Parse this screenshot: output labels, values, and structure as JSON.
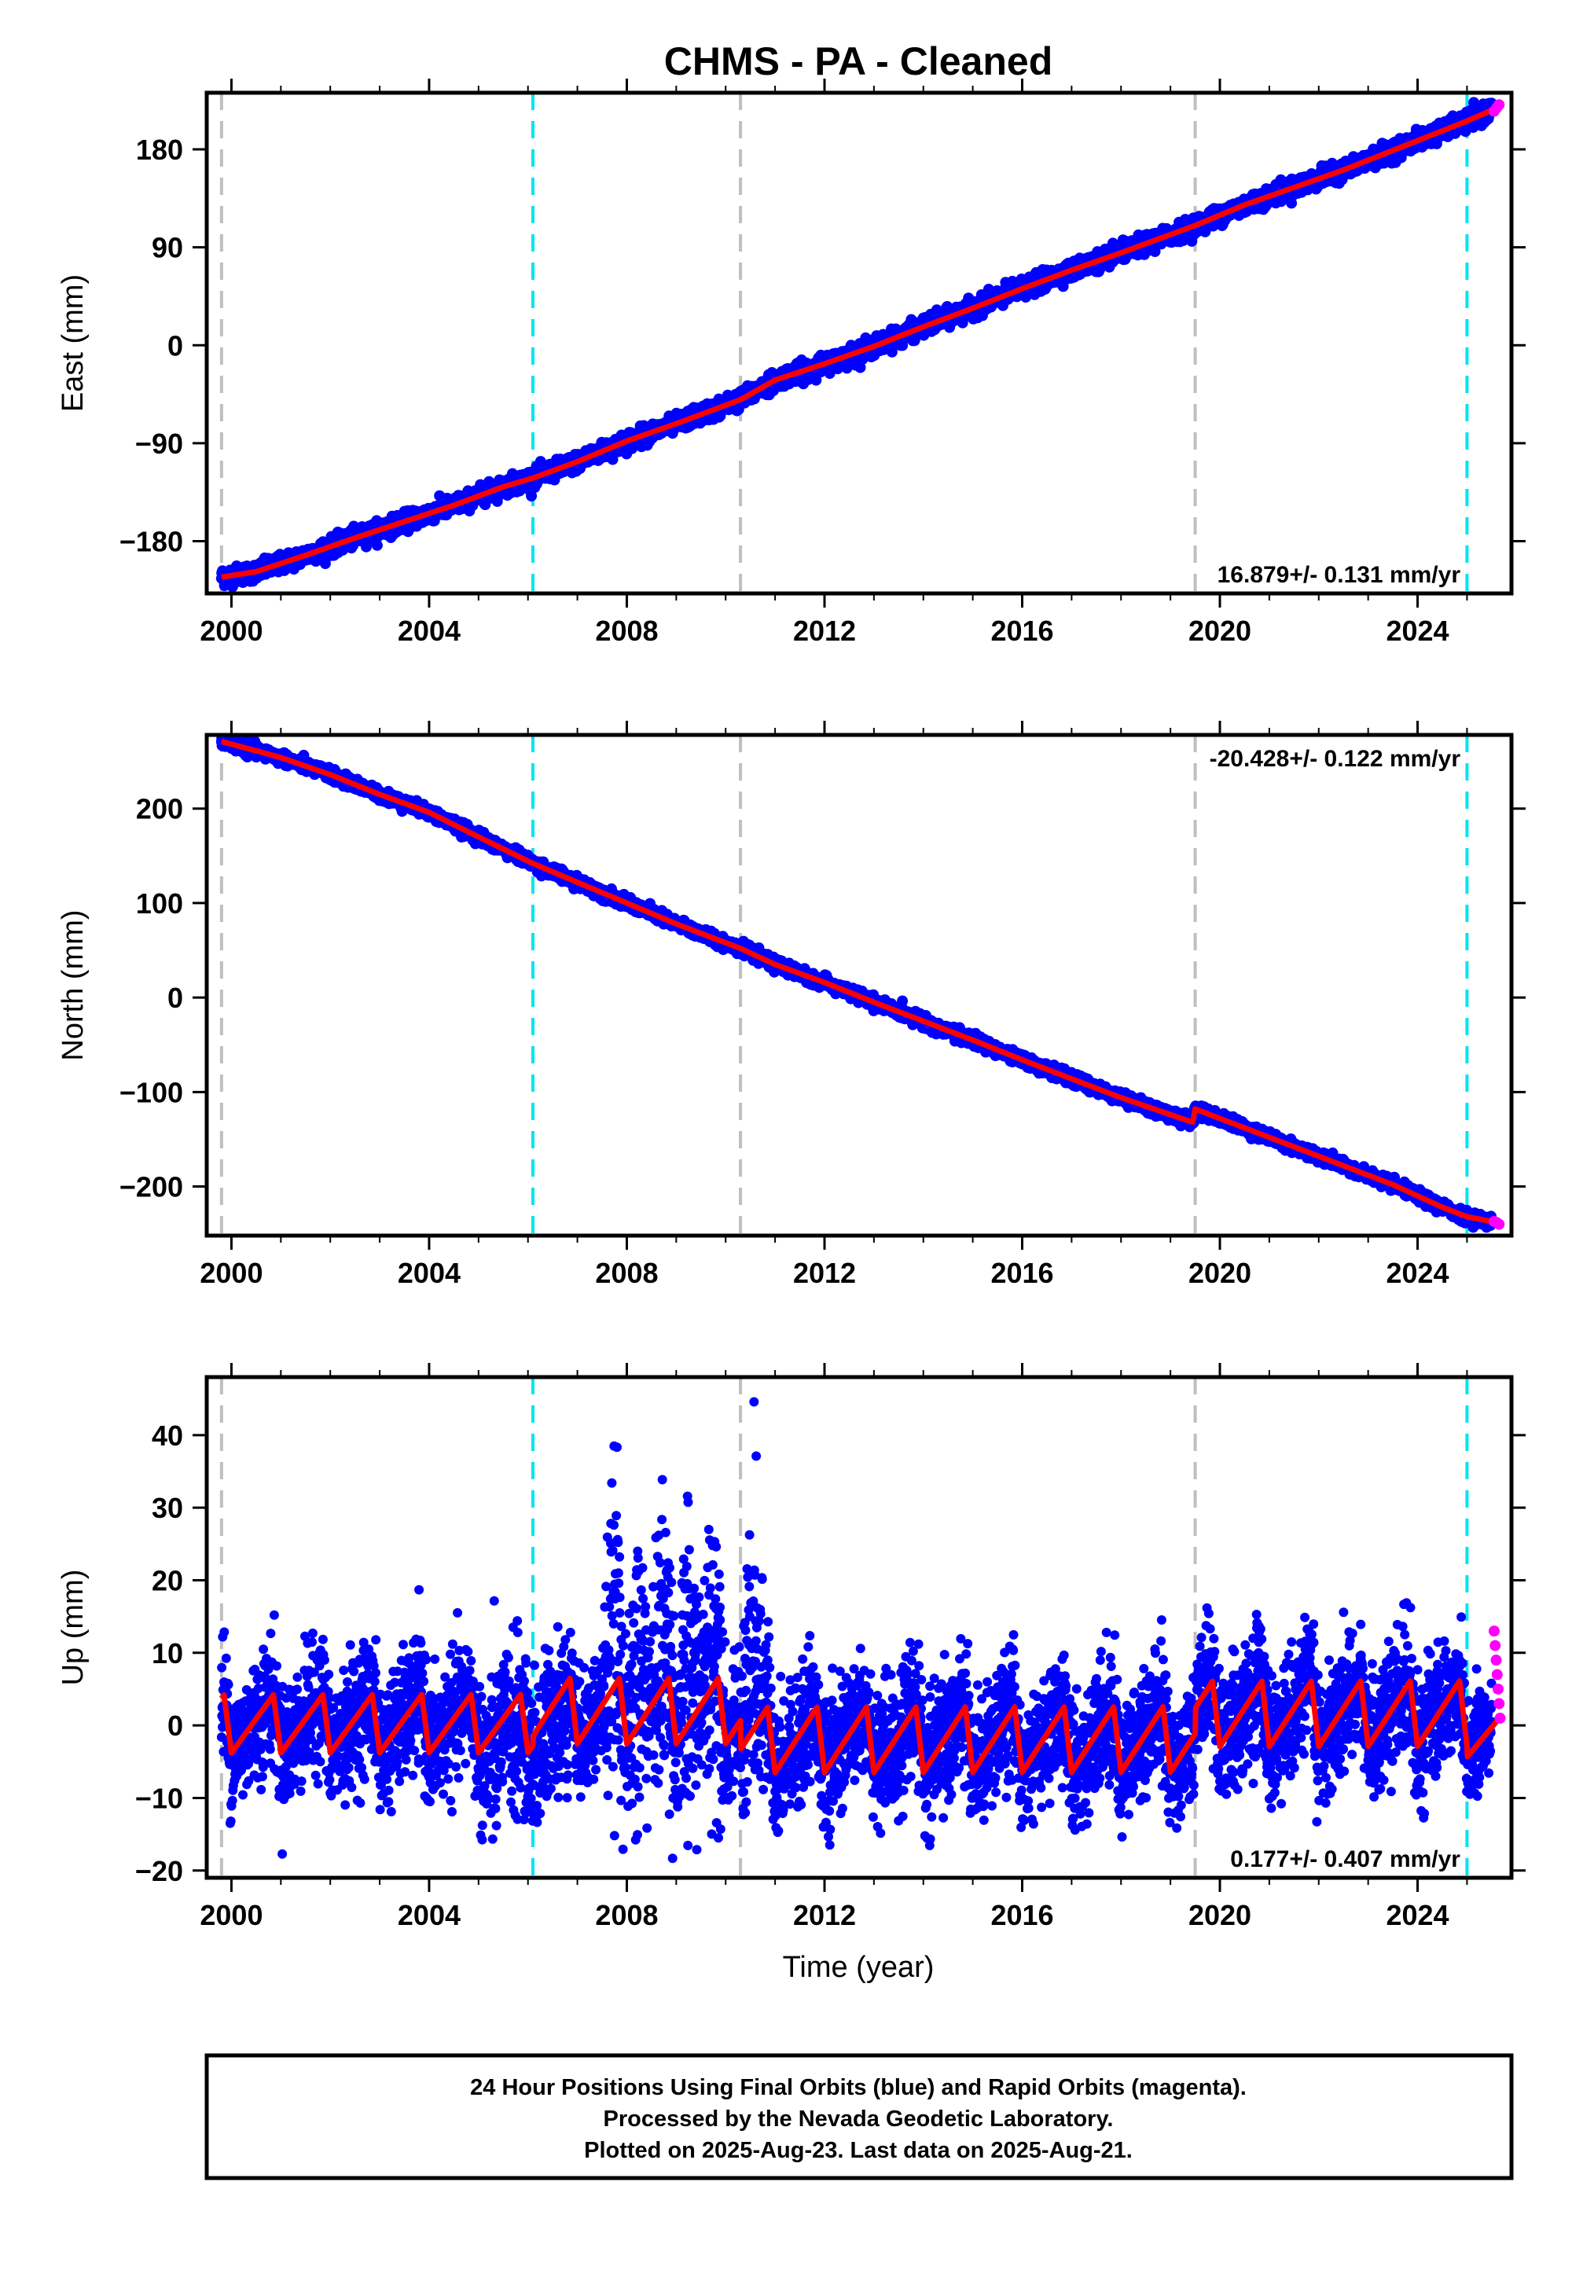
{
  "figure": {
    "title": "CHMS  - PA - Cleaned",
    "footer_lines": [
      "24 Hour Positions Using Final Orbits (blue) and Rapid Orbits (magenta).",
      "Processed by the Nevada Geodetic Laboratory.",
      "Plotted on 2025-Aug-23. Last data on 2025-Aug-21."
    ]
  },
  "colors": {
    "final_orbits": "#0000ff",
    "rapid_orbits": "#ff00ff",
    "model": "#ff0000",
    "antenna_change": "#00e5ee",
    "equipment_change": "#bfbfbf"
  },
  "chart_data": [
    {
      "type": "scatter",
      "ylabel": "East (mm)",
      "xlabel": "",
      "xlim": [
        1999.5,
        2025.9
      ],
      "ylim": [
        -228,
        232
      ],
      "x_ticks": [
        2000,
        2004,
        2008,
        2012,
        2016,
        2020,
        2024
      ],
      "y_ticks": [
        -180,
        -90,
        0,
        90,
        180
      ],
      "y_tick_labels": [
        "−180",
        "−90",
        "0",
        "90",
        "180"
      ],
      "rate_text": "16.879+/- 0.131 mm/yr",
      "velocity_mm_per_yr": 16.879,
      "cyan_lines": [
        2006.1,
        2025.0
      ],
      "gray_lines": [
        1999.8,
        2010.3,
        2019.5
      ],
      "model_points": [
        [
          1999.8,
          -213
        ],
        [
          2000.5,
          -208
        ],
        [
          2001.5,
          -193
        ],
        [
          2002.5,
          -177
        ],
        [
          2003.5,
          -162
        ],
        [
          2004.5,
          -147
        ],
        [
          2005.5,
          -130
        ],
        [
          2006.1,
          -122
        ],
        [
          2007.0,
          -107
        ],
        [
          2008.0,
          -88
        ],
        [
          2009.0,
          -72
        ],
        [
          2010.3,
          -50
        ],
        [
          2011.0,
          -32
        ],
        [
          2012.0,
          -17
        ],
        [
          2013.0,
          -1
        ],
        [
          2014.0,
          17
        ],
        [
          2015.0,
          34
        ],
        [
          2016.0,
          52
        ],
        [
          2017.0,
          69
        ],
        [
          2018.0,
          85
        ],
        [
          2019.5,
          110
        ],
        [
          2020.5,
          129
        ],
        [
          2021.5,
          145
        ],
        [
          2022.5,
          161
        ],
        [
          2023.5,
          179
        ],
        [
          2024.5,
          197
        ],
        [
          2025.0,
          206
        ],
        [
          2025.6,
          218
        ]
      ],
      "scatter_spread_mm": 4,
      "rapid_points": [
        [
          2025.55,
          215
        ],
        [
          2025.6,
          218
        ],
        [
          2025.65,
          221
        ]
      ]
    },
    {
      "type": "scatter",
      "ylabel": "North (mm)",
      "xlabel": "",
      "xlim": [
        1999.5,
        2025.9
      ],
      "ylim": [
        -252,
        278
      ],
      "x_ticks": [
        2000,
        2004,
        2008,
        2012,
        2016,
        2020,
        2024
      ],
      "y_ticks": [
        -200,
        -100,
        0,
        100,
        200
      ],
      "y_tick_labels": [
        "−200",
        "−100",
        "0",
        "100",
        "200"
      ],
      "rate_text": "-20.428+/- 0.122 mm/yr",
      "velocity_mm_per_yr": -20.428,
      "cyan_lines": [
        2006.1,
        2025.0
      ],
      "gray_lines": [
        1999.8,
        2010.3,
        2019.5
      ],
      "model_points": [
        [
          1999.8,
          271
        ],
        [
          2001.0,
          254
        ],
        [
          2002.0,
          236
        ],
        [
          2003.0,
          215
        ],
        [
          2004.0,
          196
        ],
        [
          2005.0,
          170
        ],
        [
          2006.1,
          142
        ],
        [
          2007.0,
          122
        ],
        [
          2008.0,
          100
        ],
        [
          2009.0,
          78
        ],
        [
          2010.3,
          52
        ],
        [
          2011.0,
          35
        ],
        [
          2012.0,
          16
        ],
        [
          2013.0,
          -5
        ],
        [
          2014.0,
          -25
        ],
        [
          2015.0,
          -45
        ],
        [
          2016.0,
          -66
        ],
        [
          2017.0,
          -86
        ],
        [
          2018.0,
          -106
        ],
        [
          2019.45,
          -132
        ],
        [
          2019.5,
          -118
        ],
        [
          2020.5,
          -138
        ],
        [
          2021.5,
          -158
        ],
        [
          2022.5,
          -178
        ],
        [
          2023.5,
          -198
        ],
        [
          2024.5,
          -222
        ],
        [
          2025.0,
          -232
        ],
        [
          2025.6,
          -238
        ]
      ],
      "scatter_spread_mm": 3,
      "rapid_points": [
        [
          2025.55,
          -237
        ],
        [
          2025.6,
          -238
        ],
        [
          2025.65,
          -240
        ]
      ]
    },
    {
      "type": "scatter",
      "ylabel": "Up (mm)",
      "xlabel": "Time (year)",
      "xlim": [
        1999.5,
        2025.9
      ],
      "ylim": [
        -21,
        48
      ],
      "x_ticks": [
        2000,
        2004,
        2008,
        2012,
        2016,
        2020,
        2024
      ],
      "y_ticks": [
        -20,
        -10,
        0,
        10,
        20,
        30,
        40
      ],
      "y_tick_labels": [
        "−20",
        "−10",
        "0",
        "10",
        "20",
        "30",
        "40"
      ],
      "rate_text": "0.177+/- 0.407 mm/yr",
      "velocity_mm_per_yr": 0.177,
      "cyan_lines": [
        2006.1,
        2025.0
      ],
      "gray_lines": [
        1999.8,
        2010.3,
        2019.5
      ],
      "model_segments": [
        {
          "start": 1999.8,
          "end": 2006.1,
          "offset": 0.3,
          "amplitude": 4.0
        },
        {
          "start": 2006.1,
          "end": 2010.3,
          "offset": 2.0,
          "amplitude": 4.5
        },
        {
          "start": 2010.3,
          "end": 2019.5,
          "offset": -2.0,
          "amplitude": 4.5
        },
        {
          "start": 2019.5,
          "end": 2025.0,
          "offset": 1.5,
          "amplitude": 4.5
        },
        {
          "start": 2025.0,
          "end": 2025.65,
          "offset": -1.0,
          "amplitude": 3.5
        }
      ],
      "noise_sigma_mm": 4.2,
      "noisy_intervals": [
        {
          "start": 2007.5,
          "end": 2010.0,
          "extra_sigma": 7,
          "bias": 6
        },
        {
          "start": 2010.3,
          "end": 2010.9,
          "extra_sigma": 9,
          "bias": 10
        },
        {
          "start": 2005.0,
          "end": 2006.8,
          "extra_sigma": 2,
          "bias": -4
        }
      ],
      "rapid_points": [
        [
          2025.55,
          13
        ],
        [
          2025.57,
          11
        ],
        [
          2025.59,
          9
        ],
        [
          2025.61,
          7
        ],
        [
          2025.63,
          5
        ],
        [
          2025.65,
          3
        ],
        [
          2025.67,
          1
        ]
      ]
    }
  ]
}
